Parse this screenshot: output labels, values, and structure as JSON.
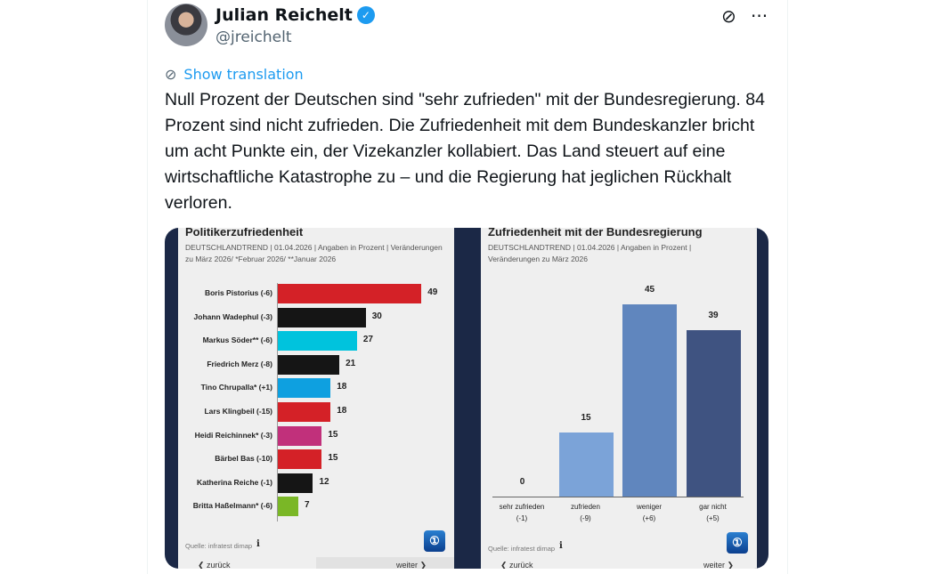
{
  "tweet": {
    "name": "Julian Reichelt",
    "handle": "@jreichelt",
    "show_translation": "Show translation",
    "text": "Null Prozent der Deutschen sind \"sehr zufrieden\" mit der Bundesregierung. 84 Prozent sind nicht zufrieden. Die Zufriedenheit mit dem Bundeskanzler bricht um acht Punkte ein, der Vizekanzler kollabiert. Das Land steuert auf eine wirtschaftliche Katastrophe zu – und die Regierung hat jeglichen Rückhalt verloren."
  },
  "left": {
    "title": "Politikerzufriedenheit",
    "sub1": "DEUTSCHLANDTREND | 01.04.2026 | Angaben in Prozent | Veränderungen",
    "sub2": "zu März 2026/ *Februar 2026/ **Januar 2026",
    "source": "Quelle: infratest dimap",
    "info": "i",
    "back": "❮ zurück",
    "next": "weiter ❯"
  },
  "right": {
    "title": "Zufriedenheit mit der Bundesregierung",
    "sub1": "DEUTSCHLANDTREND | 01.04.2026 | Angaben in Prozent |",
    "sub2": "Veränderungen zu März 2026",
    "source": "Quelle: infratest dimap",
    "info": "i",
    "back": "❮ zurück",
    "next": "weiter ❯"
  },
  "chart_data": [
    {
      "type": "bar",
      "orientation": "horizontal",
      "title": "Politikerzufriedenheit",
      "categories": [
        "Boris Pistorius (-6)",
        "Johann Wadephul (-3)",
        "Markus Söder** (-6)",
        "Friedrich Merz (-8)",
        "Tino Chrupalla* (+1)",
        "Lars Klingbeil (-15)",
        "Heidi Reichinnek* (-3)",
        "Bärbel Bas (-10)",
        "Katherina Reiche (-1)",
        "Britta Haßelmann* (-6)"
      ],
      "values": [
        49,
        30,
        27,
        21,
        18,
        18,
        15,
        15,
        12,
        7
      ],
      "colors": [
        "#d42127",
        "#151515",
        "#00c3dd",
        "#151515",
        "#0ea0e0",
        "#d42127",
        "#c1307b",
        "#d42127",
        "#151515",
        "#7ab726"
      ]
    },
    {
      "type": "bar",
      "title": "Zufriedenheit mit der Bundesregierung",
      "categories": [
        "sehr zufrieden",
        "zufrieden",
        "weniger",
        "gar nicht"
      ],
      "changes": [
        "(-1)",
        "(-9)",
        "(+6)",
        "(+5)"
      ],
      "values": [
        0,
        15,
        45,
        39
      ],
      "colors": [
        "#7ba3d8",
        "#7ba3d8",
        "#6086be",
        "#3f5381"
      ]
    }
  ]
}
